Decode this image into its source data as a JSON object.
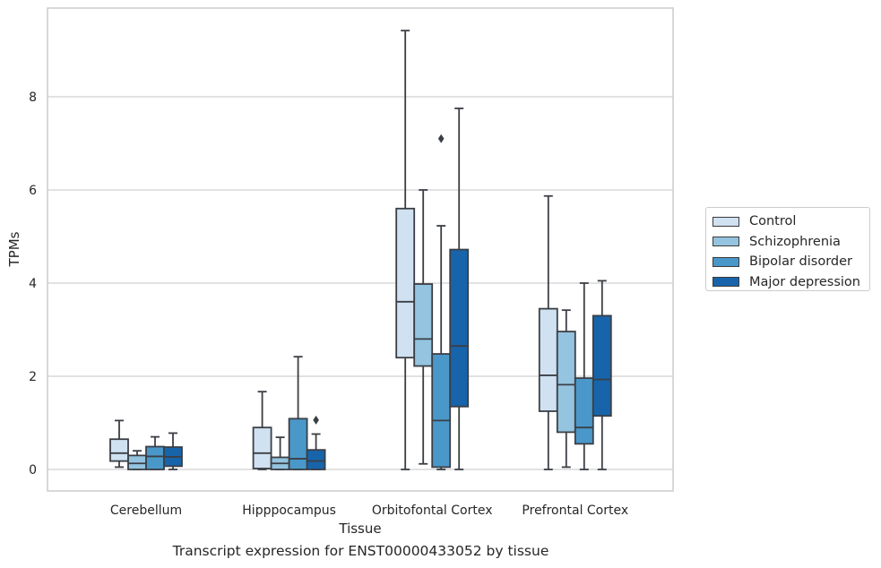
{
  "caption": "Transcript expression for ENST00000433052 by tissue",
  "chart_data": {
    "type": "boxplot",
    "xlabel": "Tissue",
    "ylabel": "TPMs",
    "ylim": [
      -0.45,
      9.8
    ],
    "yticks": [
      0,
      2,
      4,
      6,
      8
    ],
    "grid": "horizontal",
    "legend_position": "right",
    "categories": [
      "Cerebellum",
      "Hipppocampus",
      "Orbitofontal Cortex",
      "Prefrontal Cortex"
    ],
    "series": [
      {
        "name": "Control",
        "color": "#d0e1f2",
        "boxes": [
          {
            "whislo": 0.05,
            "q1": 0.18,
            "med": 0.35,
            "q3": 0.65,
            "whishi": 1.05,
            "fliers": []
          },
          {
            "whislo": 0.0,
            "q1": 0.02,
            "med": 0.35,
            "q3": 0.9,
            "whishi": 1.67,
            "fliers": []
          },
          {
            "whislo": 0.0,
            "q1": 2.4,
            "med": 3.6,
            "q3": 5.6,
            "whishi": 9.42,
            "fliers": []
          },
          {
            "whislo": 0.0,
            "q1": 1.25,
            "med": 2.02,
            "q3": 3.45,
            "whishi": 5.87,
            "fliers": []
          }
        ]
      },
      {
        "name": "Schizophrenia",
        "color": "#94c4df",
        "boxes": [
          {
            "whislo": 0.0,
            "q1": 0.0,
            "med": 0.13,
            "q3": 0.3,
            "whishi": 0.4,
            "fliers": []
          },
          {
            "whislo": 0.0,
            "q1": 0.0,
            "med": 0.13,
            "q3": 0.26,
            "whishi": 0.69,
            "fliers": []
          },
          {
            "whislo": 0.12,
            "q1": 2.22,
            "med": 2.8,
            "q3": 3.98,
            "whishi": 6.0,
            "fliers": []
          },
          {
            "whislo": 0.05,
            "q1": 0.8,
            "med": 1.82,
            "q3": 2.96,
            "whishi": 3.42,
            "fliers": []
          }
        ]
      },
      {
        "name": "Bipolar disorder",
        "color": "#4a98c9",
        "boxes": [
          {
            "whislo": 0.0,
            "q1": 0.0,
            "med": 0.28,
            "q3": 0.49,
            "whishi": 0.7,
            "fliers": []
          },
          {
            "whislo": 0.0,
            "q1": 0.0,
            "med": 0.23,
            "q3": 1.09,
            "whishi": 2.42,
            "fliers": []
          },
          {
            "whislo": 0.0,
            "q1": 0.05,
            "med": 1.05,
            "q3": 2.48,
            "whishi": 5.23,
            "fliers": [
              7.1
            ]
          },
          {
            "whislo": 0.0,
            "q1": 0.55,
            "med": 0.9,
            "q3": 1.96,
            "whishi": 4.0,
            "fliers": []
          }
        ]
      },
      {
        "name": "Major depression",
        "color": "#1764ab",
        "boxes": [
          {
            "whislo": 0.0,
            "q1": 0.07,
            "med": 0.27,
            "q3": 0.48,
            "whishi": 0.78,
            "fliers": []
          },
          {
            "whislo": 0.0,
            "q1": 0.0,
            "med": 0.18,
            "q3": 0.42,
            "whishi": 0.76,
            "fliers": [
              1.06
            ]
          },
          {
            "whislo": 0.0,
            "q1": 1.35,
            "med": 2.65,
            "q3": 4.72,
            "whishi": 7.75,
            "fliers": []
          },
          {
            "whislo": 0.0,
            "q1": 1.15,
            "med": 1.93,
            "q3": 3.3,
            "whishi": 4.05,
            "fliers": []
          }
        ]
      }
    ]
  }
}
